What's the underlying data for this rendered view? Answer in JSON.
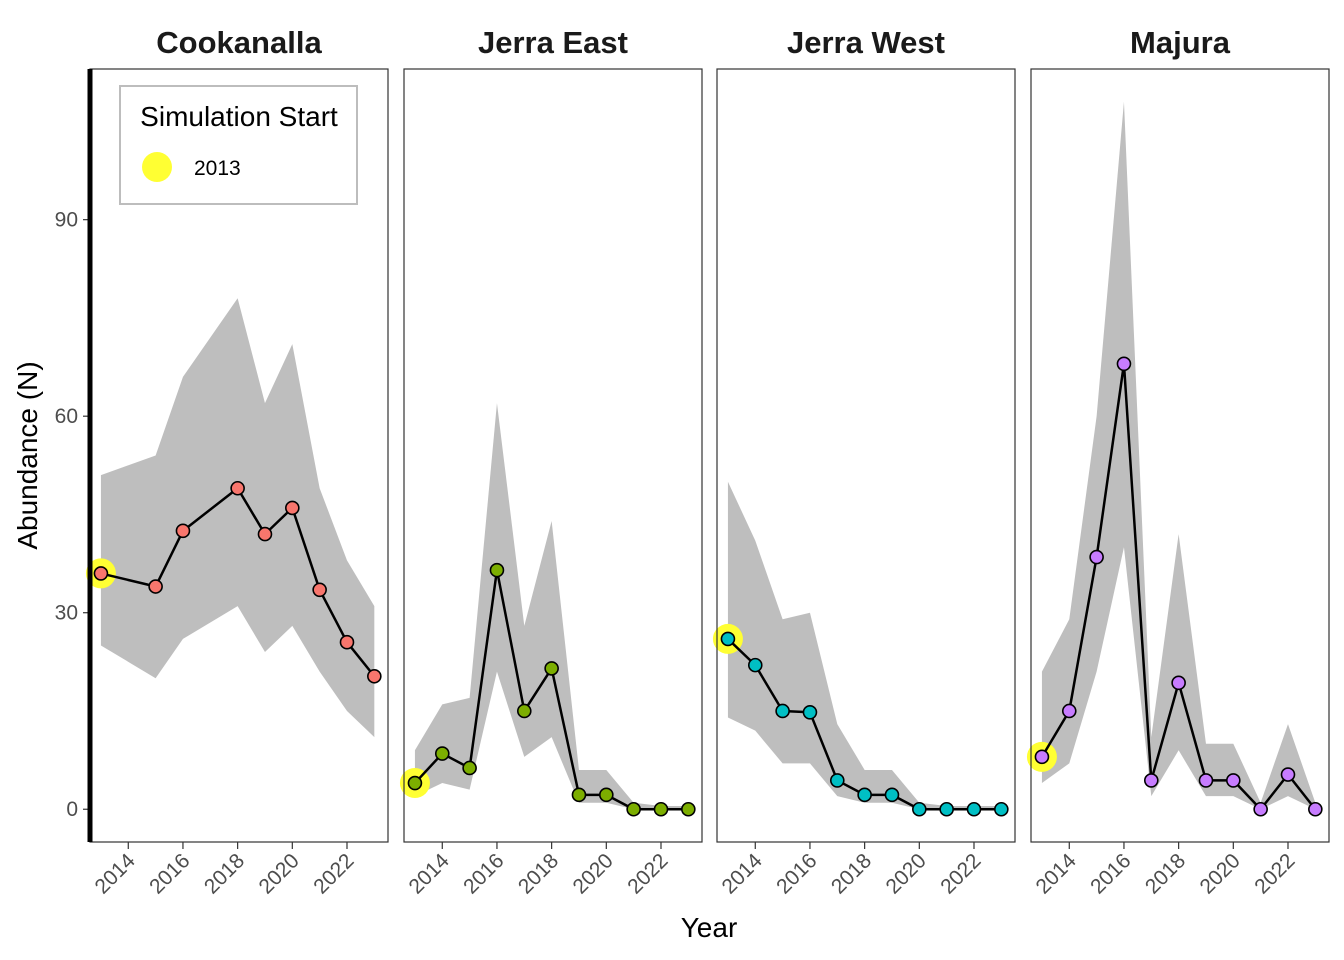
{
  "chart_data": {
    "type": "line",
    "xlabel": "Year",
    "ylabel": "Abundance (N)",
    "xlim": [
      2012.6,
      2023.5
    ],
    "ylim": [
      -5,
      113
    ],
    "x_ticks": [
      "2014",
      "2016",
      "2018",
      "2020",
      "2022"
    ],
    "x_tick_values": [
      2014,
      2016,
      2018,
      2020,
      2022
    ],
    "y_ticks": [
      "0",
      "30",
      "60",
      "90"
    ],
    "y_tick_values": [
      0,
      30,
      60,
      90
    ],
    "grid": false,
    "legend": {
      "title": "Simulation Start",
      "label": "2013",
      "placement": "top-left inside first panel",
      "color": "#ffff33"
    },
    "band_color": "#bebebe",
    "line_color": "#000000",
    "panels": [
      {
        "title": "Cookanalla",
        "color": "#f8766d",
        "start": {
          "x": 2013,
          "y": 36
        },
        "points": [
          {
            "x": 2013,
            "y": 36
          },
          {
            "x": 2015,
            "y": 34
          },
          {
            "x": 2016,
            "y": 42.5
          },
          {
            "x": 2018,
            "y": 49
          },
          {
            "x": 2019,
            "y": 42
          },
          {
            "x": 2020,
            "y": 46
          },
          {
            "x": 2021,
            "y": 33.5
          },
          {
            "x": 2022,
            "y": 25.5
          },
          {
            "x": 2023,
            "y": 20.3
          }
        ],
        "band": [
          {
            "x": 2013,
            "lo": 25,
            "hi": 51
          },
          {
            "x": 2015,
            "lo": 20,
            "hi": 54
          },
          {
            "x": 2016,
            "lo": 26,
            "hi": 66
          },
          {
            "x": 2018,
            "lo": 31,
            "hi": 78
          },
          {
            "x": 2019,
            "lo": 24,
            "hi": 62
          },
          {
            "x": 2020,
            "lo": 28,
            "hi": 71
          },
          {
            "x": 2021,
            "lo": 21,
            "hi": 49
          },
          {
            "x": 2022,
            "lo": 15,
            "hi": 38
          },
          {
            "x": 2023,
            "lo": 11,
            "hi": 31
          }
        ]
      },
      {
        "title": "Jerra East",
        "color": "#7cae00",
        "start": {
          "x": 2013,
          "y": 4
        },
        "points": [
          {
            "x": 2013,
            "y": 4
          },
          {
            "x": 2014,
            "y": 8.5
          },
          {
            "x": 2015,
            "y": 6.3
          },
          {
            "x": 2016,
            "y": 36.5
          },
          {
            "x": 2017,
            "y": 15
          },
          {
            "x": 2018,
            "y": 21.5
          },
          {
            "x": 2019,
            "y": 2.2
          },
          {
            "x": 2020,
            "y": 2.2
          },
          {
            "x": 2021,
            "y": 0
          },
          {
            "x": 2022,
            "y": 0
          },
          {
            "x": 2023,
            "y": 0
          }
        ],
        "band": [
          {
            "x": 2013,
            "lo": 2,
            "hi": 9
          },
          {
            "x": 2014,
            "lo": 4,
            "hi": 16
          },
          {
            "x": 2015,
            "lo": 3,
            "hi": 17
          },
          {
            "x": 2016,
            "lo": 21,
            "hi": 62
          },
          {
            "x": 2017,
            "lo": 8,
            "hi": 28
          },
          {
            "x": 2018,
            "lo": 11,
            "hi": 44
          },
          {
            "x": 2019,
            "lo": 1,
            "hi": 6
          },
          {
            "x": 2020,
            "lo": 1,
            "hi": 6
          },
          {
            "x": 2021,
            "lo": 0,
            "hi": 1
          },
          {
            "x": 2022,
            "lo": 0,
            "hi": 0.5
          },
          {
            "x": 2023,
            "lo": 0,
            "hi": 0.5
          }
        ]
      },
      {
        "title": "Jerra West",
        "color": "#00bfc4",
        "start": {
          "x": 2013,
          "y": 26
        },
        "points": [
          {
            "x": 2013,
            "y": 26
          },
          {
            "x": 2014,
            "y": 22
          },
          {
            "x": 2015,
            "y": 15
          },
          {
            "x": 2016,
            "y": 14.8
          },
          {
            "x": 2017,
            "y": 4.4
          },
          {
            "x": 2018,
            "y": 2.2
          },
          {
            "x": 2019,
            "y": 2.2
          },
          {
            "x": 2020,
            "y": 0
          },
          {
            "x": 2021,
            "y": 0
          },
          {
            "x": 2022,
            "y": 0
          },
          {
            "x": 2023,
            "y": 0
          }
        ],
        "band": [
          {
            "x": 2013,
            "lo": 14,
            "hi": 50
          },
          {
            "x": 2014,
            "lo": 12,
            "hi": 41
          },
          {
            "x": 2015,
            "lo": 7,
            "hi": 29
          },
          {
            "x": 2016,
            "lo": 7,
            "hi": 30
          },
          {
            "x": 2017,
            "lo": 2,
            "hi": 13
          },
          {
            "x": 2018,
            "lo": 1,
            "hi": 6
          },
          {
            "x": 2019,
            "lo": 1,
            "hi": 6
          },
          {
            "x": 2020,
            "lo": 0,
            "hi": 1
          },
          {
            "x": 2021,
            "lo": 0,
            "hi": 0.5
          },
          {
            "x": 2022,
            "lo": 0,
            "hi": 0.5
          },
          {
            "x": 2023,
            "lo": 0,
            "hi": 0.5
          }
        ]
      },
      {
        "title": "Majura",
        "color": "#c77cff",
        "start": {
          "x": 2013,
          "y": 8
        },
        "points": [
          {
            "x": 2013,
            "y": 8
          },
          {
            "x": 2014,
            "y": 15
          },
          {
            "x": 2015,
            "y": 38.5
          },
          {
            "x": 2016,
            "y": 68
          },
          {
            "x": 2017,
            "y": 4.4
          },
          {
            "x": 2018,
            "y": 19.3
          },
          {
            "x": 2019,
            "y": 4.4
          },
          {
            "x": 2020,
            "y": 4.4
          },
          {
            "x": 2021,
            "y": 0
          },
          {
            "x": 2022,
            "y": 5.3
          },
          {
            "x": 2023,
            "y": 0
          }
        ],
        "band": [
          {
            "x": 2013,
            "lo": 4,
            "hi": 21
          },
          {
            "x": 2014,
            "lo": 7,
            "hi": 29
          },
          {
            "x": 2015,
            "lo": 21,
            "hi": 60
          },
          {
            "x": 2016,
            "lo": 40,
            "hi": 108
          },
          {
            "x": 2017,
            "lo": 2,
            "hi": 11
          },
          {
            "x": 2018,
            "lo": 9,
            "hi": 42
          },
          {
            "x": 2019,
            "lo": 2,
            "hi": 10
          },
          {
            "x": 2020,
            "lo": 2,
            "hi": 10
          },
          {
            "x": 2021,
            "lo": 0,
            "hi": 1
          },
          {
            "x": 2022,
            "lo": 2,
            "hi": 13
          },
          {
            "x": 2023,
            "lo": 0,
            "hi": 1
          }
        ]
      }
    ]
  }
}
